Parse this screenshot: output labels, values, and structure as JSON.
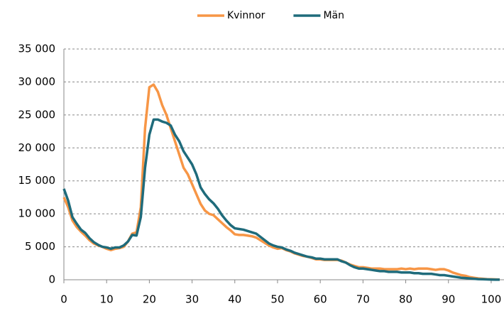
{
  "chart_data": {
    "type": "line",
    "x": [
      0,
      1,
      2,
      3,
      4,
      5,
      6,
      7,
      8,
      9,
      10,
      11,
      12,
      13,
      14,
      15,
      16,
      17,
      18,
      19,
      20,
      21,
      22,
      23,
      24,
      25,
      26,
      27,
      28,
      29,
      30,
      31,
      32,
      33,
      34,
      35,
      36,
      37,
      38,
      39,
      40,
      41,
      42,
      43,
      44,
      45,
      46,
      47,
      48,
      49,
      50,
      51,
      52,
      53,
      54,
      55,
      56,
      57,
      58,
      59,
      60,
      61,
      62,
      63,
      64,
      65,
      66,
      67,
      68,
      69,
      70,
      71,
      72,
      73,
      74,
      75,
      76,
      77,
      78,
      79,
      80,
      81,
      82,
      83,
      84,
      85,
      86,
      87,
      88,
      89,
      90,
      91,
      92,
      93,
      94,
      95,
      96,
      97,
      98,
      99,
      100,
      101,
      102
    ],
    "series": [
      {
        "name": "Kvinnor",
        "color": "#f79646",
        "values": [
          12500,
          11000,
          9000,
          8000,
          7300,
          6700,
          6000,
          5500,
          5200,
          5000,
          4700,
          4500,
          4700,
          4800,
          5000,
          5800,
          7000,
          7200,
          11000,
          23000,
          29200,
          29600,
          28500,
          26500,
          25000,
          23000,
          21000,
          19000,
          17000,
          16000,
          14500,
          13000,
          11500,
          10500,
          10000,
          9800,
          9200,
          8600,
          8000,
          7500,
          6900,
          6800,
          6800,
          6700,
          6600,
          6400,
          6000,
          5600,
          5200,
          4900,
          4700,
          4800,
          4500,
          4300,
          4000,
          3800,
          3600,
          3500,
          3300,
          3100,
          3100,
          3000,
          3000,
          3000,
          3000,
          2900,
          2600,
          2300,
          2100,
          1900,
          1900,
          1800,
          1700,
          1700,
          1700,
          1600,
          1600,
          1600,
          1600,
          1700,
          1600,
          1700,
          1600,
          1700,
          1700,
          1700,
          1600,
          1500,
          1600,
          1600,
          1400,
          1100,
          900,
          700,
          600,
          400,
          300,
          200,
          150,
          100,
          80,
          50,
          30
        ]
      },
      {
        "name": "Män",
        "color": "#1f6b7b",
        "values": [
          13800,
          12000,
          9500,
          8500,
          7600,
          7100,
          6300,
          5700,
          5300,
          5000,
          4900,
          4700,
          4900,
          4900,
          5200,
          5800,
          6800,
          6700,
          9500,
          17000,
          22000,
          24300,
          24300,
          24000,
          23800,
          23400,
          22000,
          21000,
          19500,
          18500,
          17500,
          16000,
          14000,
          13000,
          12200,
          11600,
          10800,
          9800,
          9000,
          8300,
          7800,
          7700,
          7600,
          7400,
          7200,
          7000,
          6500,
          6000,
          5500,
          5200,
          5000,
          4900,
          4600,
          4400,
          4100,
          3900,
          3700,
          3500,
          3400,
          3200,
          3200,
          3100,
          3100,
          3100,
          3100,
          2800,
          2600,
          2200,
          1900,
          1700,
          1700,
          1600,
          1500,
          1400,
          1300,
          1300,
          1200,
          1200,
          1200,
          1100,
          1100,
          1100,
          1000,
          1000,
          900,
          900,
          900,
          800,
          700,
          700,
          600,
          500,
          400,
          300,
          250,
          200,
          150,
          100,
          80,
          50,
          30,
          20,
          10
        ]
      }
    ],
    "xlim": [
      0,
      103
    ],
    "xticks": [
      0,
      10,
      20,
      30,
      40,
      50,
      60,
      70,
      80,
      90,
      100
    ],
    "ylim": [
      0,
      35000
    ],
    "yticks": [
      0,
      {
        "value": 5000,
        "label": "5 000"
      },
      {
        "value": 10000,
        "label": "10 000"
      },
      {
        "value": 15000,
        "label": "15 000"
      },
      {
        "value": 20000,
        "label": "20 000"
      },
      {
        "value": 25000,
        "label": "25 000"
      },
      {
        "value": 30000,
        "label": "30 000"
      },
      {
        "value": 35000,
        "label": "35 000"
      }
    ],
    "grid": true,
    "legend": "top"
  }
}
